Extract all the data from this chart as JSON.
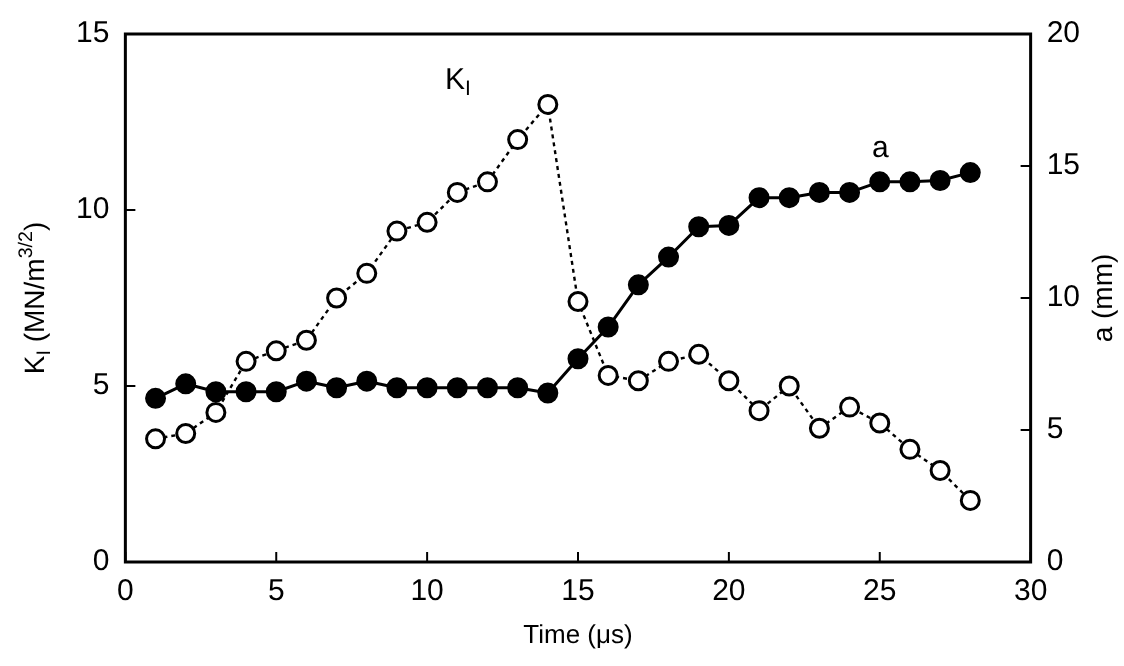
{
  "chart_data": {
    "type": "line",
    "xlabel": "Time (μs)",
    "ylabel": "K$_{I}$ (MN/m$^{3/2}$)",
    "y2label": "a (mm)",
    "x": [
      1,
      2,
      3,
      4,
      5,
      6,
      7,
      8,
      9,
      10,
      11,
      12,
      13,
      14,
      15,
      16,
      17,
      18,
      19,
      20,
      21,
      22,
      23,
      24,
      25,
      26,
      27,
      28
    ],
    "series": [
      {
        "color": "#000000",
        "line_style": "dotted",
        "marker": "circle",
        "values": [
          3.5,
          3.65,
          4.25,
          5.7,
          6.0,
          6.3,
          7.5,
          8.2,
          9.4,
          9.65,
          10.5,
          10.8,
          12.0,
          13.0,
          7.4,
          5.3,
          5.15,
          5.7,
          5.9,
          5.15,
          4.3,
          5.0,
          3.8,
          4.4,
          3.95,
          3.2,
          2.6,
          1.75
        ]
      },
      {
        "color": "#000000",
        "line_style": "solid",
        "marker": "circle",
        "axis": "y2",
        "values": [
          6.2,
          6.75,
          6.45,
          6.45,
          6.45,
          6.85,
          6.6,
          6.85,
          6.6,
          6.6,
          6.6,
          6.6,
          6.6,
          6.4,
          7.7,
          8.9,
          10.5,
          11.55,
          12.7,
          12.75,
          13.8,
          13.8,
          14.0,
          14.0,
          14.4,
          14.4,
          14.45,
          14.75
        ]
      }
    ],
    "xlim": [
      0,
      30
    ],
    "xticks": [
      0,
      5,
      10,
      15,
      20,
      25,
      30
    ],
    "ylim": [
      0,
      15
    ],
    "yticks": [
      0,
      5,
      10,
      15
    ],
    "y2lim": [
      0,
      20
    ],
    "y2ticks": [
      0,
      5,
      10,
      15,
      20
    ],
    "grid": false,
    "legend": false,
    "annotations": [
      "K$_{I}$",
      "a"
    ]
  }
}
